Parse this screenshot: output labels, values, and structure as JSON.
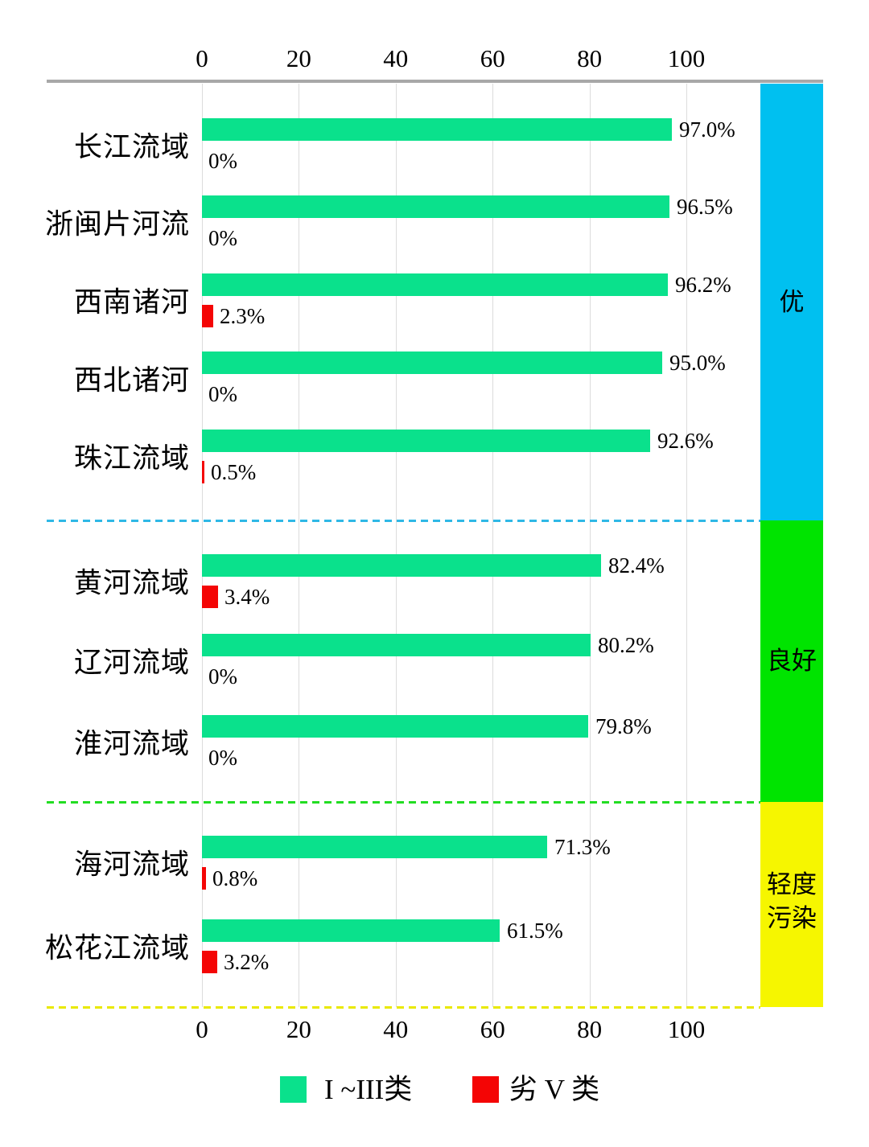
{
  "chart_data": {
    "type": "bar",
    "orientation": "horizontal",
    "unit": "percent",
    "axis_ticks": [
      0,
      20,
      40,
      60,
      80,
      100
    ],
    "axis_max": 115,
    "grid": true,
    "series_names": [
      "I~III类",
      "劣V类"
    ],
    "groups": [
      {
        "grade": "优",
        "band_label_lines": "优",
        "band_color": "#00c0f0",
        "divider_color": "#2fb8e6",
        "rows": [
          {
            "basin": "长江流域",
            "good": 97.0,
            "good_label": "97.0%",
            "bad": 0,
            "bad_label": "0%"
          },
          {
            "basin": "浙闽片河流",
            "good": 96.5,
            "good_label": "96.5%",
            "bad": 0,
            "bad_label": "0%"
          },
          {
            "basin": "西南诸河",
            "good": 96.2,
            "good_label": "96.2%",
            "bad": 2.3,
            "bad_label": "2.3%"
          },
          {
            "basin": "西北诸河",
            "good": 95.0,
            "good_label": "95.0%",
            "bad": 0,
            "bad_label": "0%"
          },
          {
            "basin": "珠江流域",
            "good": 92.6,
            "good_label": "92.6%",
            "bad": 0.5,
            "bad_label": "0.5%"
          }
        ]
      },
      {
        "grade": "良好",
        "band_label_lines": "良好",
        "band_color": "#00e400",
        "divider_color": "#22dd22",
        "rows": [
          {
            "basin": "黄河流域",
            "good": 82.4,
            "good_label": "82.4%",
            "bad": 3.4,
            "bad_label": "3.4%"
          },
          {
            "basin": "辽河流域",
            "good": 80.2,
            "good_label": "80.2%",
            "bad": 0,
            "bad_label": "0%"
          },
          {
            "basin": "淮河流域",
            "good": 79.8,
            "good_label": "79.8%",
            "bad": 0,
            "bad_label": "0%"
          }
        ]
      },
      {
        "grade": "轻度污染",
        "band_label_lines": "轻度\n污染",
        "band_color": "#f6f600",
        "divider_color": "#e9e900",
        "rows": [
          {
            "basin": "海河流域",
            "good": 71.3,
            "good_label": "71.3%",
            "bad": 0.8,
            "bad_label": "0.8%"
          },
          {
            "basin": "松花江流域",
            "good": 61.5,
            "good_label": "61.5%",
            "bad": 3.2,
            "bad_label": "3.2%"
          }
        ]
      }
    ]
  },
  "legend": {
    "good_label": "I ~III类",
    "bad_label": "劣 V 类"
  },
  "colors": {
    "good_bar": "#0ae18c",
    "bad_bar": "#f40505",
    "axis_line": "#a8a8a8",
    "gridline": "#dcdcdc"
  }
}
